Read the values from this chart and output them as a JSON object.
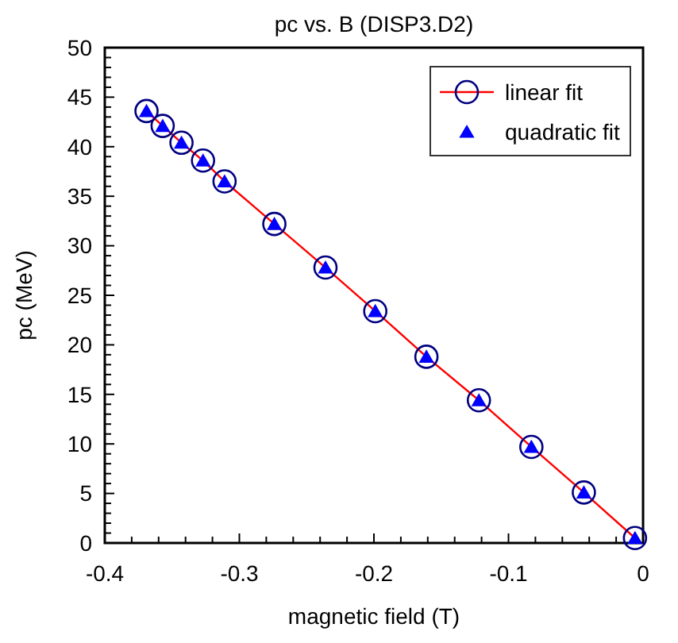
{
  "chart_data": {
    "type": "scatter",
    "title": "pc vs. B (DISP3.D2)",
    "xlabel": "magnetic field (T)",
    "ylabel": "pc (MeV)",
    "x": [
      -0.369,
      -0.357,
      -0.343,
      -0.327,
      -0.311,
      -0.274,
      -0.236,
      -0.199,
      -0.161,
      -0.122,
      -0.083,
      -0.044,
      -0.006
    ],
    "series": [
      {
        "name": "linear fit",
        "type": "line",
        "color": "#ff0000",
        "marker": "circle",
        "values": [
          43.6,
          42.1,
          40.4,
          38.6,
          36.5,
          32.2,
          27.8,
          23.4,
          18.8,
          14.4,
          9.7,
          5.1,
          0.5
        ]
      },
      {
        "name": "quadratic fit",
        "type": "scatter",
        "color": "#0000ff",
        "marker": "triangle",
        "values": [
          43.6,
          42.1,
          40.4,
          38.6,
          36.5,
          32.2,
          27.8,
          23.4,
          18.8,
          14.4,
          9.7,
          5.1,
          0.5
        ]
      }
    ],
    "xlim": [
      -0.4,
      0
    ],
    "ylim": [
      0,
      50
    ],
    "xticks": [
      {
        "value": -0.4,
        "label": "-0.4"
      },
      {
        "value": -0.38,
        "label": null
      },
      {
        "value": -0.36,
        "label": null
      },
      {
        "value": -0.34,
        "label": null
      },
      {
        "value": -0.32,
        "label": null
      },
      {
        "value": -0.3,
        "label": "-0.3"
      },
      {
        "value": -0.28,
        "label": null
      },
      {
        "value": -0.26,
        "label": null
      },
      {
        "value": -0.24,
        "label": null
      },
      {
        "value": -0.22,
        "label": null
      },
      {
        "value": -0.2,
        "label": "-0.2"
      },
      {
        "value": -0.18,
        "label": null
      },
      {
        "value": -0.16,
        "label": null
      },
      {
        "value": -0.14,
        "label": null
      },
      {
        "value": -0.12,
        "label": null
      },
      {
        "value": -0.1,
        "label": "-0.1"
      },
      {
        "value": -0.08,
        "label": null
      },
      {
        "value": -0.06,
        "label": null
      },
      {
        "value": -0.04,
        "label": null
      },
      {
        "value": -0.02,
        "label": null
      },
      {
        "value": 0,
        "label": "0"
      }
    ],
    "yticks": [
      0,
      {
        "value": 1,
        "label": null
      },
      {
        "value": 2,
        "label": null
      },
      {
        "value": 3,
        "label": null
      },
      {
        "value": 4,
        "label": null
      },
      5,
      {
        "value": 6,
        "label": null
      },
      {
        "value": 7,
        "label": null
      },
      {
        "value": 8,
        "label": null
      },
      {
        "value": 9,
        "label": null
      },
      10,
      {
        "value": 11,
        "label": null
      },
      {
        "value": 12,
        "label": null
      },
      {
        "value": 13,
        "label": null
      },
      {
        "value": 14,
        "label": null
      },
      15,
      {
        "value": 16,
        "label": null
      },
      {
        "value": 17,
        "label": null
      },
      {
        "value": 18,
        "label": null
      },
      {
        "value": 19,
        "label": null
      },
      20,
      {
        "value": 21,
        "label": null
      },
      {
        "value": 22,
        "label": null
      },
      {
        "value": 23,
        "label": null
      },
      {
        "value": 24,
        "label": null
      },
      25,
      {
        "value": 26,
        "label": null
      },
      {
        "value": 27,
        "label": null
      },
      {
        "value": 28,
        "label": null
      },
      {
        "value": 29,
        "label": null
      },
      30,
      {
        "value": 31,
        "label": null
      },
      {
        "value": 32,
        "label": null
      },
      {
        "value": 33,
        "label": null
      },
      {
        "value": 34,
        "label": null
      },
      35,
      {
        "value": 36,
        "label": null
      },
      {
        "value": 37,
        "label": null
      },
      {
        "value": 38,
        "label": null
      },
      {
        "value": 39,
        "label": null
      },
      40,
      {
        "value": 41,
        "label": null
      },
      {
        "value": 42,
        "label": null
      },
      {
        "value": 43,
        "label": null
      },
      {
        "value": 44,
        "label": null
      },
      45,
      {
        "value": 46,
        "label": null
      },
      {
        "value": 47,
        "label": null
      },
      {
        "value": 48,
        "label": null
      },
      {
        "value": 49,
        "label": null
      },
      50
    ],
    "legend": "top right"
  }
}
